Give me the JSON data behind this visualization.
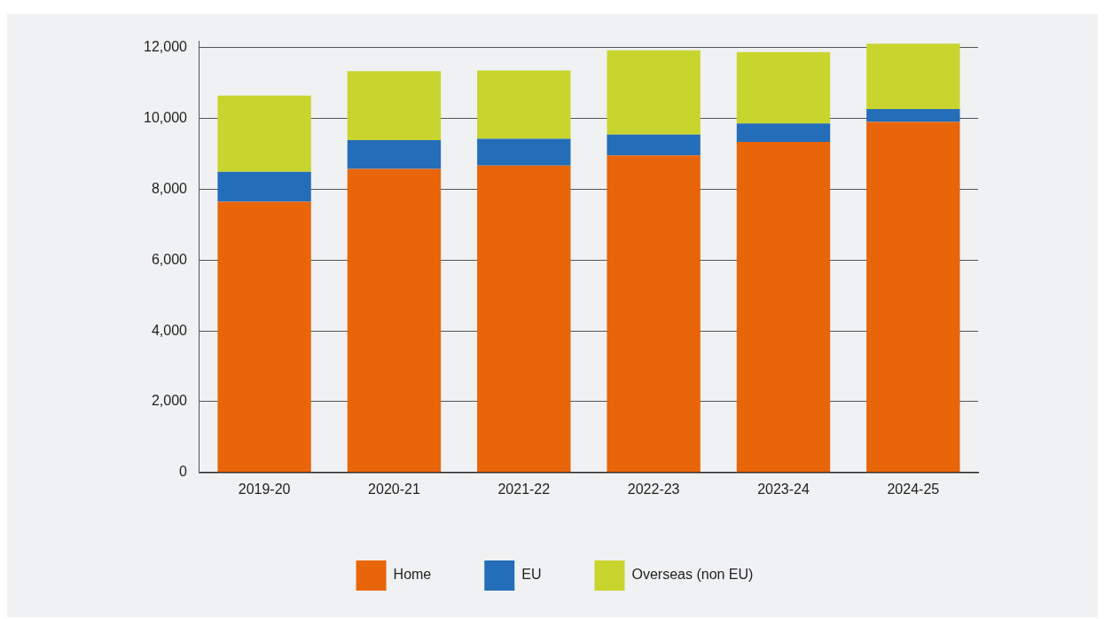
{
  "chart_data": {
    "type": "bar",
    "stacked": true,
    "categories": [
      "2019-20",
      "2020-21",
      "2021-22",
      "2022-23",
      "2023-24",
      "2024-25"
    ],
    "series": [
      {
        "name": "Home",
        "color": "#e8650a",
        "values": [
          7650,
          8580,
          8670,
          8960,
          9340,
          9910
        ]
      },
      {
        "name": "EU",
        "color": "#246db8",
        "values": [
          850,
          810,
          760,
          590,
          520,
          360
        ]
      },
      {
        "name": "Overseas (non EU)",
        "color": "#c8d52e",
        "values": [
          2150,
          1950,
          1930,
          2380,
          2020,
          1850
        ]
      }
    ],
    "ylim": [
      0,
      12200
    ],
    "yticks": [
      {
        "value": 0,
        "label": "0"
      },
      {
        "value": 2000,
        "label": "2,000"
      },
      {
        "value": 4000,
        "label": "4,000"
      },
      {
        "value": 6000,
        "label": "6,000"
      },
      {
        "value": 8000,
        "label": "8,000"
      },
      {
        "value": 10000,
        "label": "10,000"
      },
      {
        "value": 12000,
        "label": "12,000"
      }
    ],
    "grid": "y",
    "legend": "bottom"
  }
}
